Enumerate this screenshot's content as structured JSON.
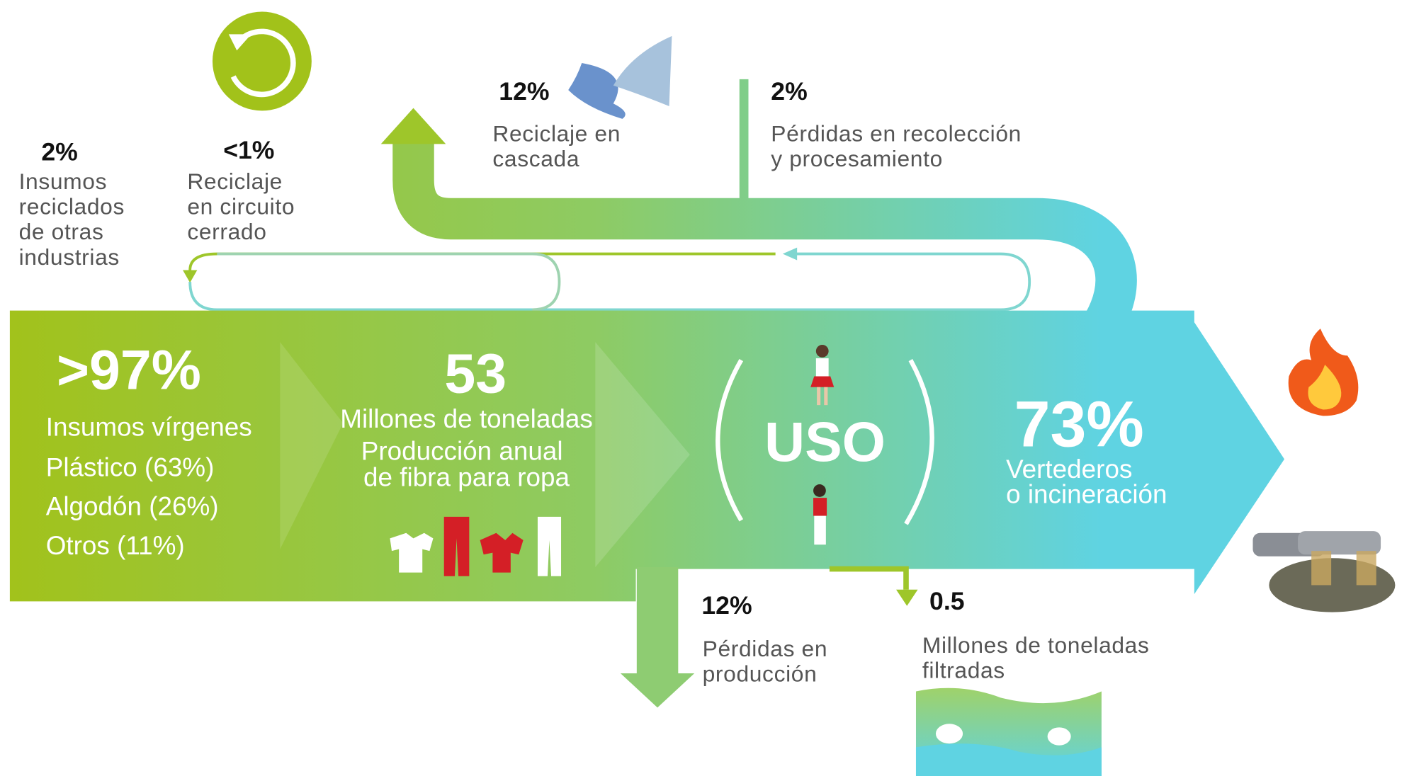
{
  "nodes": [
    {
      "value": "2%",
      "label": [
        "Insumos",
        "reciclados",
        "de otras",
        "industrias"
      ]
    },
    {
      "value": "<1%",
      "label": [
        "Reciclaje",
        "en circuito",
        "cerrado"
      ]
    },
    {
      "value": "12%",
      "label": [
        "Reciclaje en",
        "cascada"
      ]
    },
    {
      "value": "2%",
      "label": [
        "Pérdidas en recolección",
        "y procesamiento"
      ]
    },
    {
      "value": ">97%",
      "label": [
        "Insumos vírgenes",
        "Plástico (63%)",
        "Algodón (26%)",
        "Otros (11%)"
      ]
    },
    {
      "value": "53",
      "label": [
        "Millones de toneladas",
        "Producción anual",
        "de fibra para ropa"
      ]
    },
    {
      "value": "USO"
    },
    {
      "value": "73%",
      "label": [
        "Vertederos",
        "o incineración"
      ]
    },
    {
      "value": "12%",
      "label": [
        "Pérdidas en",
        "producción"
      ]
    },
    {
      "value": "0.5",
      "label": [
        "Millones de toneladas",
        "filtradas"
      ]
    }
  ]
}
